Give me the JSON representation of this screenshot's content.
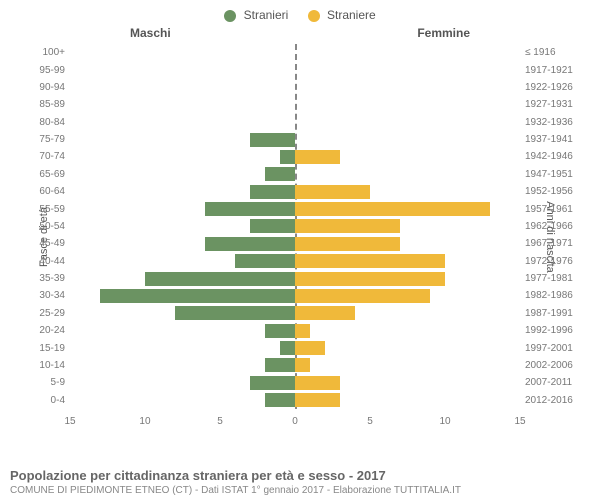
{
  "legend": {
    "male": {
      "label": "Stranieri",
      "color": "#6b9362"
    },
    "female": {
      "label": "Straniere",
      "color": "#f0b93a"
    }
  },
  "headers": {
    "male": "Maschi",
    "female": "Femmine"
  },
  "axis": {
    "left_label": "Fasce di età",
    "right_label": "Anni di nascita",
    "xmax": 15,
    "xticks": [
      15,
      10,
      5,
      0,
      5,
      10,
      15
    ]
  },
  "rows": [
    {
      "age": "100+",
      "birth": "≤ 1916",
      "m": 0,
      "f": 0
    },
    {
      "age": "95-99",
      "birth": "1917-1921",
      "m": 0,
      "f": 0
    },
    {
      "age": "90-94",
      "birth": "1922-1926",
      "m": 0,
      "f": 0
    },
    {
      "age": "85-89",
      "birth": "1927-1931",
      "m": 0,
      "f": 0
    },
    {
      "age": "80-84",
      "birth": "1932-1936",
      "m": 0,
      "f": 0
    },
    {
      "age": "75-79",
      "birth": "1937-1941",
      "m": 3,
      "f": 0
    },
    {
      "age": "70-74",
      "birth": "1942-1946",
      "m": 1,
      "f": 3
    },
    {
      "age": "65-69",
      "birth": "1947-1951",
      "m": 2,
      "f": 0
    },
    {
      "age": "60-64",
      "birth": "1952-1956",
      "m": 3,
      "f": 5
    },
    {
      "age": "55-59",
      "birth": "1957-1961",
      "m": 6,
      "f": 13
    },
    {
      "age": "50-54",
      "birth": "1962-1966",
      "m": 3,
      "f": 7
    },
    {
      "age": "45-49",
      "birth": "1967-1971",
      "m": 6,
      "f": 7
    },
    {
      "age": "40-44",
      "birth": "1972-1976",
      "m": 4,
      "f": 10
    },
    {
      "age": "35-39",
      "birth": "1977-1981",
      "m": 10,
      "f": 10
    },
    {
      "age": "30-34",
      "birth": "1982-1986",
      "m": 13,
      "f": 9
    },
    {
      "age": "25-29",
      "birth": "1987-1991",
      "m": 8,
      "f": 4
    },
    {
      "age": "20-24",
      "birth": "1992-1996",
      "m": 2,
      "f": 1
    },
    {
      "age": "15-19",
      "birth": "1997-2001",
      "m": 1,
      "f": 2
    },
    {
      "age": "10-14",
      "birth": "2002-2006",
      "m": 2,
      "f": 1
    },
    {
      "age": "5-9",
      "birth": "2007-2011",
      "m": 3,
      "f": 3
    },
    {
      "age": "0-4",
      "birth": "2012-2016",
      "m": 2,
      "f": 3
    }
  ],
  "colors": {
    "male_bar": "#6b9362",
    "female_bar": "#f0b93a",
    "background": "#ffffff",
    "text": "#666666"
  },
  "footer": {
    "title": "Popolazione per cittadinanza straniera per età e sesso - 2017",
    "subtitle": "COMUNE DI PIEDIMONTE ETNEO (CT) - Dati ISTAT 1° gennaio 2017 - Elaborazione TUTTITALIA.IT"
  }
}
